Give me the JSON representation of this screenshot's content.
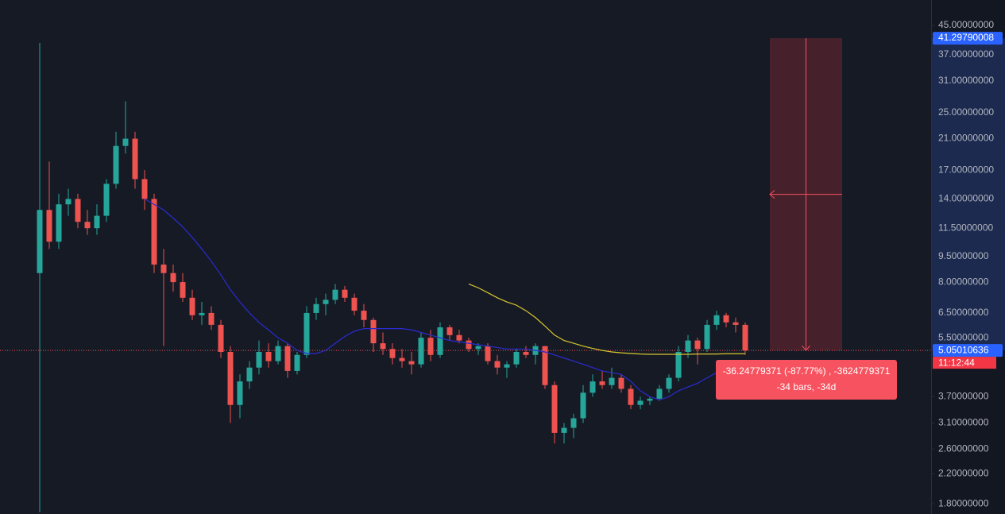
{
  "chart_data": {
    "type": "candlestick",
    "log_scale": true,
    "ylim": [
      1.68,
      53.4
    ],
    "yticks": [
      {
        "value": 45,
        "label": "45.00000000"
      },
      {
        "value": 37,
        "label": "37.00000000"
      },
      {
        "value": 31,
        "label": "31.00000000"
      },
      {
        "value": 25,
        "label": "25.00000000"
      },
      {
        "value": 21,
        "label": "21.00000000"
      },
      {
        "value": 17,
        "label": "17.00000000"
      },
      {
        "value": 14,
        "label": "14.00000000"
      },
      {
        "value": 11.5,
        "label": "11.50000000"
      },
      {
        "value": 9.5,
        "label": "9.50000000"
      },
      {
        "value": 8,
        "label": "8.00000000"
      },
      {
        "value": 6.5,
        "label": "6.50000000"
      },
      {
        "value": 5.5,
        "label": "5.50000000"
      },
      {
        "value": 3.7,
        "label": "3.70000000"
      },
      {
        "value": 3.1,
        "label": "3.10000000"
      },
      {
        "value": 2.6,
        "label": "2.60000000"
      },
      {
        "value": 2.2,
        "label": "2.20000000"
      },
      {
        "value": 1.8,
        "label": "1.80000000"
      }
    ],
    "up_color": "#26a69a",
    "down_color": "#ef5350",
    "open": [
      8.5,
      13,
      10.5,
      13.5,
      14,
      12,
      11.5,
      12.5,
      15.5,
      20,
      21,
      16,
      14,
      9,
      8.5,
      8,
      7.2,
      6.4,
      6.5,
      6,
      5,
      3.5,
      4.1,
      4.5,
      5,
      4.7,
      5.2,
      4.4,
      4.9,
      6.5,
      6.9,
      7.1,
      7.6,
      7.2,
      6.6,
      6.2,
      5.3,
      5.1,
      4.8,
      4.7,
      4.6,
      5.5,
      4.9,
      5.9,
      5.6,
      5.4,
      5.1,
      5.2,
      4.7,
      4.5,
      4.6,
      5,
      4.9,
      5.2,
      4,
      2.9,
      3,
      3.2,
      3.8,
      4.1,
      4,
      4.2,
      3.9,
      3.5,
      3.6,
      3.65,
      3.9,
      4.2,
      5,
      5.4,
      5.1,
      6,
      6.4,
      6.1,
      6
    ],
    "high": [
      40,
      18,
      14.5,
      15,
      14.5,
      13,
      13.5,
      16,
      22,
      27,
      22,
      17,
      14.5,
      10,
      9,
      8.5,
      7.6,
      7,
      6.8,
      6.2,
      5.2,
      4.3,
      4.7,
      5.4,
      5.3,
      5.4,
      5.3,
      5,
      6.8,
      7.2,
      7.4,
      7.9,
      7.8,
      7.4,
      6.9,
      6.3,
      5.7,
      5.3,
      5.1,
      5,
      5.7,
      5.8,
      6.1,
      6,
      5.8,
      5.5,
      5.3,
      5.3,
      4.9,
      4.7,
      5.1,
      5.2,
      5.3,
      5.2,
      4.1,
      3.1,
      3.3,
      4,
      4.3,
      4.4,
      4.5,
      4.3,
      4,
      3.7,
      3.7,
      4,
      4.3,
      5.2,
      5.6,
      5.5,
      6.2,
      6.6,
      6.5,
      6.3,
      6.1
    ],
    "low": [
      1.7,
      10,
      10,
      12.5,
      11.5,
      11,
      11,
      12,
      15,
      19,
      15,
      13,
      8.5,
      5.2,
      7.5,
      7,
      6.2,
      6,
      5.8,
      4.8,
      3.1,
      3.2,
      3.9,
      4.3,
      4.5,
      4.6,
      4.2,
      4.3,
      4.8,
      6.2,
      6.4,
      6.9,
      7,
      6.4,
      5.9,
      5,
      4.9,
      4.6,
      4.5,
      4.3,
      4.5,
      4.7,
      4.8,
      5.4,
      5.3,
      5,
      4.9,
      4.6,
      4.3,
      4.2,
      4.5,
      4.8,
      4.6,
      3.9,
      2.7,
      2.7,
      2.8,
      3.1,
      3.7,
      3.9,
      3.9,
      3.8,
      3.4,
      3.4,
      3.5,
      3.6,
      3.8,
      4.1,
      4.8,
      4.6,
      5,
      5.8,
      5.9,
      5.7,
      4.9
    ],
    "close": [
      13,
      10.5,
      13.5,
      14,
      12,
      11.5,
      12.5,
      15.5,
      20,
      21,
      16,
      14,
      9,
      8.5,
      8,
      7.2,
      6.4,
      6.5,
      6,
      5,
      3.5,
      4.1,
      4.5,
      5,
      4.7,
      5.2,
      4.4,
      4.9,
      6.5,
      6.9,
      7.1,
      7.6,
      7.2,
      6.6,
      6.2,
      5.3,
      5.1,
      4.8,
      4.7,
      4.6,
      5.5,
      4.9,
      5.9,
      5.6,
      5.4,
      5.1,
      5.2,
      4.7,
      4.5,
      4.6,
      5,
      4.9,
      5.2,
      4,
      2.9,
      3,
      3.2,
      3.8,
      4.1,
      4,
      4.2,
      3.9,
      3.5,
      3.6,
      3.65,
      3.9,
      4.2,
      5,
      5.4,
      5.1,
      6,
      6.4,
      6.1,
      6,
      5.05010636
    ],
    "lines": [
      {
        "color": "#2b2bd0",
        "values": [
          null,
          null,
          null,
          null,
          null,
          null,
          null,
          null,
          null,
          null,
          null,
          14,
          13.5,
          13,
          12.3,
          11.6,
          10.8,
          10,
          9.2,
          8.4,
          7.6,
          7,
          6.5,
          6.1,
          5.8,
          5.5,
          5.3,
          5.05,
          4.95,
          4.95,
          5.05,
          5.3,
          5.55,
          5.75,
          5.85,
          5.85,
          5.85,
          5.85,
          5.85,
          5.8,
          5.7,
          5.6,
          5.5,
          5.4,
          5.35,
          5.3,
          5.25,
          5.2,
          5.15,
          5.1,
          5.1,
          5.1,
          5.05,
          5,
          4.9,
          4.8,
          4.7,
          4.6,
          4.5,
          4.4,
          4.35,
          4.3,
          4.1,
          3.85,
          3.7,
          3.62,
          3.7,
          3.85,
          3.95,
          4.05,
          4.2,
          4.35,
          4.5,
          null,
          null
        ]
      },
      {
        "color": "#d9c72e",
        "values": [
          null,
          null,
          null,
          null,
          null,
          null,
          null,
          null,
          null,
          null,
          null,
          null,
          null,
          null,
          null,
          null,
          null,
          null,
          null,
          null,
          null,
          null,
          null,
          null,
          null,
          null,
          null,
          null,
          null,
          null,
          null,
          null,
          null,
          null,
          null,
          null,
          null,
          null,
          null,
          null,
          null,
          null,
          null,
          null,
          null,
          7.9,
          7.7,
          7.45,
          7.2,
          7,
          6.85,
          6.6,
          6.3,
          5.95,
          5.6,
          5.4,
          5.3,
          5.2,
          5.12,
          5.05,
          5,
          4.97,
          4.95,
          4.93,
          4.92,
          4.92,
          4.92,
          4.92,
          4.92,
          4.93,
          4.93,
          4.93,
          4.94,
          4.94,
          4.94
        ]
      }
    ],
    "last_price": {
      "value": 5.05010636,
      "label": "5.05010636"
    },
    "countdown": "11:12:44",
    "measure": {
      "from": {
        "value": 41.29790008,
        "label": "41.29790008"
      },
      "to": 5.05010636,
      "text_line1": "-36.24779371 (-87.77%) , -3624779371",
      "text_line2": "-34 bars, -34d"
    }
  }
}
